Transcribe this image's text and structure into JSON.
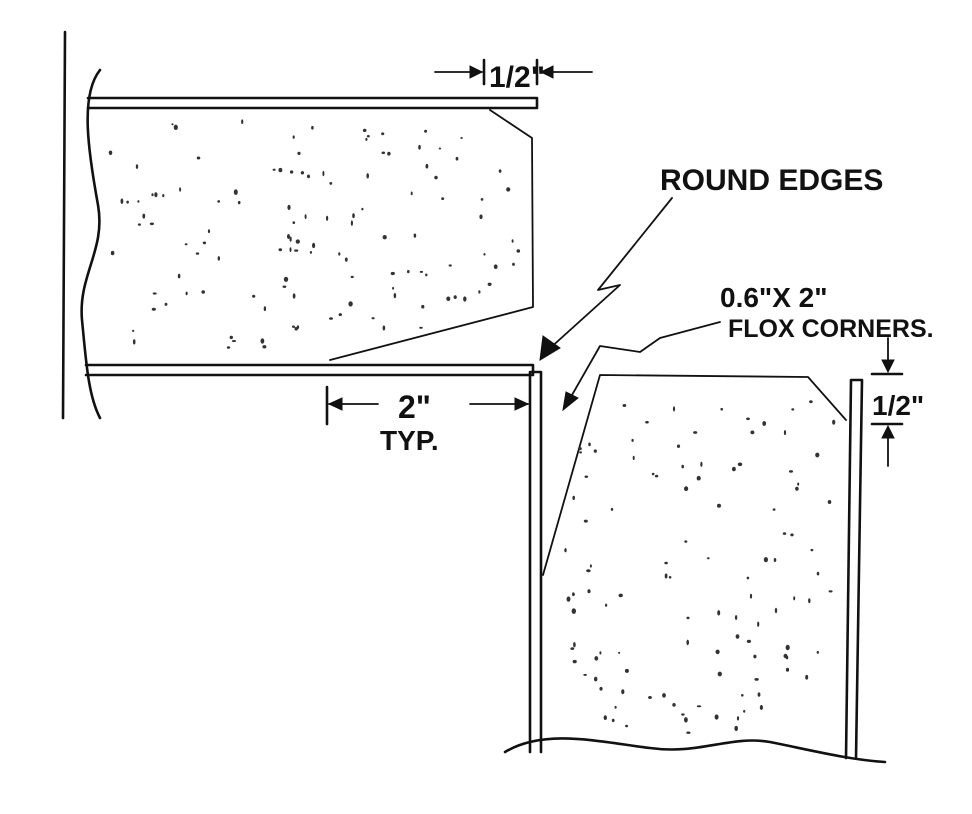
{
  "labels": {
    "round_edges": "ROUND EDGES",
    "flox_line1": "0.6\"X 2\"",
    "flox_line2": "FLOX CORNERS.",
    "dim_top": "1/2\"",
    "dim_two": "2\"",
    "dim_typ": "TYP.",
    "dim_right": "1/2\""
  }
}
